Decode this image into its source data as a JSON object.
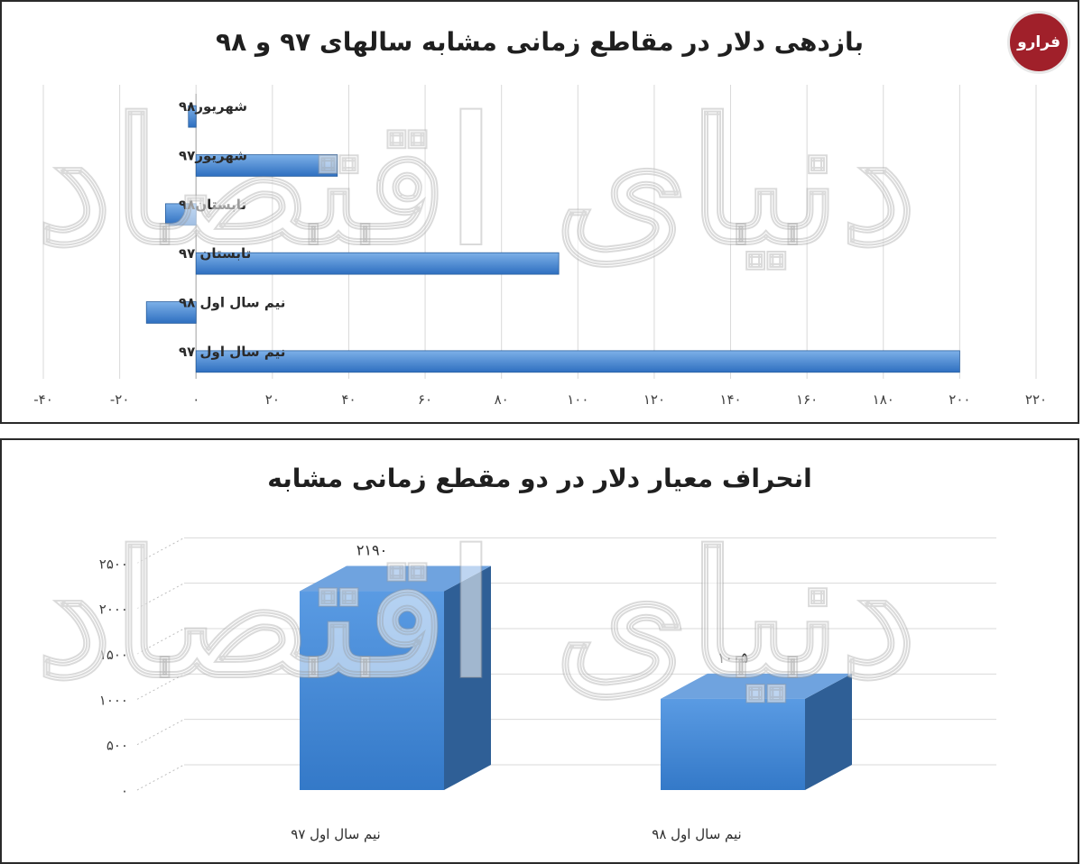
{
  "logo_text": "فرارو",
  "watermark_text": "دنیای اقتصاد",
  "colors": {
    "bar": "#4a8bd6",
    "bar_dark": "#2f5f96",
    "bar_top": "#6fa3df",
    "grid": "#d9d9d9",
    "axis": "#404040",
    "panel_border": "#2a2a2a",
    "logo": "#a0202a"
  },
  "chart_data": [
    {
      "type": "bar",
      "orientation": "horizontal",
      "title": "بازدهی دلار در مقاطع زمانی مشابه سالهای  ۹۷ و ۹۸",
      "categories": [
        "شهریور۹۸",
        "شهریور۹۷",
        "تابستان۹۸",
        "تابستان ۹۷",
        "نیم سال اول ۹۸",
        "نیم سال اول ۹۷"
      ],
      "values": [
        -2,
        37,
        -8,
        95,
        -13,
        200
      ],
      "xlim": [
        -40,
        220
      ],
      "xticks": [
        -40,
        -20,
        0,
        20,
        40,
        60,
        80,
        100,
        120,
        140,
        160,
        180,
        200,
        220
      ],
      "xtick_labels": [
        "-۴۰",
        "-۲۰",
        "۰",
        "۲۰",
        "۴۰",
        "۶۰",
        "۸۰",
        "۱۰۰",
        "۱۲۰",
        "۱۴۰",
        "۱۶۰",
        "۱۸۰",
        "۲۰۰",
        "۲۲۰"
      ],
      "grid": true,
      "legend": false
    },
    {
      "type": "bar",
      "orientation": "vertical",
      "style": "3d",
      "title": "انحراف معیار دلار در دو مقطع زمانی مشابه",
      "categories": [
        "نیم سال اول ۹۷",
        "نیم سال اول ۹۸"
      ],
      "values": [
        2190,
        1005
      ],
      "data_labels": [
        "۲۱۹۰",
        "۱۰۰۵"
      ],
      "ylim": [
        0,
        3000
      ],
      "yticks": [
        0,
        500,
        1000,
        1500,
        2000,
        2500
      ],
      "ytick_labels": [
        "۰",
        "۵۰۰",
        "۱۰۰۰",
        "۱۵۰۰",
        "۲۰۰۰",
        "۲۵۰۰"
      ],
      "grid": true,
      "legend": false
    }
  ]
}
